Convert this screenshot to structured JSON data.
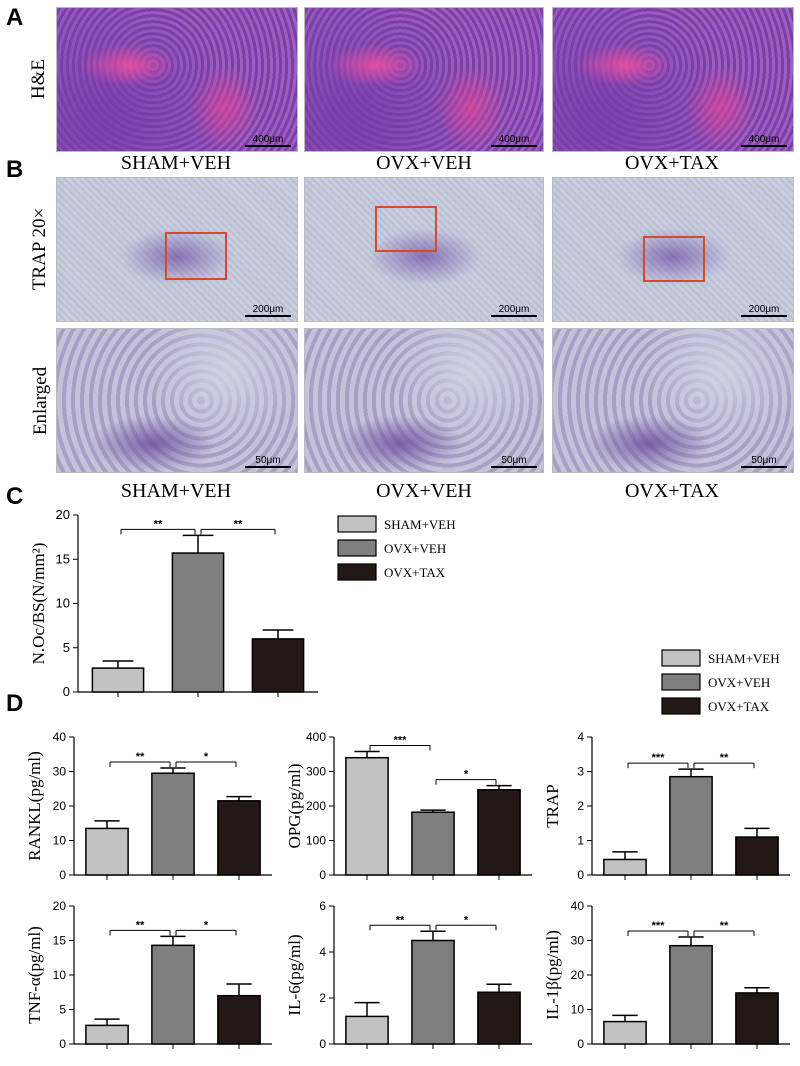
{
  "panels": {
    "A": "A",
    "B": "B",
    "C": "C",
    "D": "D"
  },
  "row_labels": {
    "he": "H&E",
    "trap": "TRAP 20×",
    "enlarged": "Enlarged"
  },
  "groups": [
    "SHAM+VEH",
    "OVX+VEH",
    "OVX+TAX"
  ],
  "scale_labels": {
    "he": "400μm",
    "trap": "200μm",
    "enlarged": "50μm"
  },
  "colors": {
    "sham": "#c2c2c2",
    "ovx_veh": "#7f7f7f",
    "ovx_tax": "#231815",
    "roi": "#d44a2a"
  },
  "chart_data": [
    {
      "id": "noc",
      "type": "bar",
      "ylabel": "N.Oc/BS(N/mm²)",
      "ylim": [
        0,
        20
      ],
      "yticks": [
        0,
        5,
        10,
        15,
        20
      ],
      "categories": [
        "SHAM+VEH",
        "OVX+VEH",
        "OVX+TAX"
      ],
      "values": [
        2.7,
        15.7,
        6.0
      ],
      "errors": [
        0.8,
        2.0,
        1.0
      ],
      "significance": [
        {
          "from": 0,
          "to": 1,
          "label": "**"
        },
        {
          "from": 1,
          "to": 2,
          "label": "**"
        }
      ]
    },
    {
      "id": "rankl",
      "type": "bar",
      "ylabel": "RANKL(pg/ml)",
      "ylim": [
        0,
        40
      ],
      "yticks": [
        0,
        10,
        20,
        30,
        40
      ],
      "categories": [
        "SHAM+VEH",
        "OVX+VEH",
        "OVX+TAX"
      ],
      "values": [
        13.5,
        29.5,
        21.5
      ],
      "errors": [
        2.2,
        1.5,
        1.2
      ],
      "significance": [
        {
          "from": 0,
          "to": 1,
          "label": "**"
        },
        {
          "from": 1,
          "to": 2,
          "label": "*"
        }
      ]
    },
    {
      "id": "opg",
      "type": "bar",
      "ylabel": "OPG(pg/ml)",
      "ylim": [
        0,
        400
      ],
      "yticks": [
        0,
        100,
        200,
        300,
        400
      ],
      "categories": [
        "SHAM+VEH",
        "OVX+VEH",
        "OVX+TAX"
      ],
      "values": [
        340,
        182,
        247
      ],
      "errors": [
        18,
        6,
        12
      ],
      "significance": [
        {
          "from": 0,
          "to": 1,
          "label": "***"
        },
        {
          "from": 1,
          "to": 2,
          "label": "*"
        }
      ]
    },
    {
      "id": "trap",
      "type": "bar",
      "ylabel": "TRAP",
      "ylim": [
        0,
        4
      ],
      "yticks": [
        0,
        1,
        2,
        3,
        4
      ],
      "categories": [
        "SHAM+VEH",
        "OVX+VEH",
        "OVX+TAX"
      ],
      "values": [
        0.45,
        2.85,
        1.1
      ],
      "errors": [
        0.22,
        0.22,
        0.25
      ],
      "significance": [
        {
          "from": 0,
          "to": 1,
          "label": "***"
        },
        {
          "from": 1,
          "to": 2,
          "label": "**"
        }
      ]
    },
    {
      "id": "tnf",
      "type": "bar",
      "ylabel": "TNF-α(pg/ml)",
      "ylim": [
        0,
        20
      ],
      "yticks": [
        0,
        5,
        10,
        15,
        20
      ],
      "categories": [
        "SHAM+VEH",
        "OVX+VEH",
        "OVX+TAX"
      ],
      "values": [
        2.7,
        14.3,
        7.0
      ],
      "errors": [
        0.9,
        1.3,
        1.7
      ],
      "significance": [
        {
          "from": 0,
          "to": 1,
          "label": "**"
        },
        {
          "from": 1,
          "to": 2,
          "label": "*"
        }
      ]
    },
    {
      "id": "il6",
      "type": "bar",
      "ylabel": "IL-6(pg/ml)",
      "ylim": [
        0,
        6
      ],
      "yticks": [
        0,
        2,
        4,
        6
      ],
      "categories": [
        "SHAM+VEH",
        "OVX+VEH",
        "OVX+TAX"
      ],
      "values": [
        1.2,
        4.5,
        2.25
      ],
      "errors": [
        0.6,
        0.4,
        0.35
      ],
      "significance": [
        {
          "from": 0,
          "to": 1,
          "label": "**"
        },
        {
          "from": 1,
          "to": 2,
          "label": "*"
        }
      ]
    },
    {
      "id": "il1b",
      "type": "bar",
      "ylabel": "IL-1β(pg/ml)",
      "ylim": [
        0,
        40
      ],
      "yticks": [
        0,
        10,
        20,
        30,
        40
      ],
      "categories": [
        "SHAM+VEH",
        "OVX+VEH",
        "OVX+TAX"
      ],
      "values": [
        6.5,
        28.5,
        14.8
      ],
      "errors": [
        1.8,
        2.5,
        1.5
      ],
      "significance": [
        {
          "from": 0,
          "to": 1,
          "label": "***"
        },
        {
          "from": 1,
          "to": 2,
          "label": "**"
        }
      ]
    }
  ]
}
